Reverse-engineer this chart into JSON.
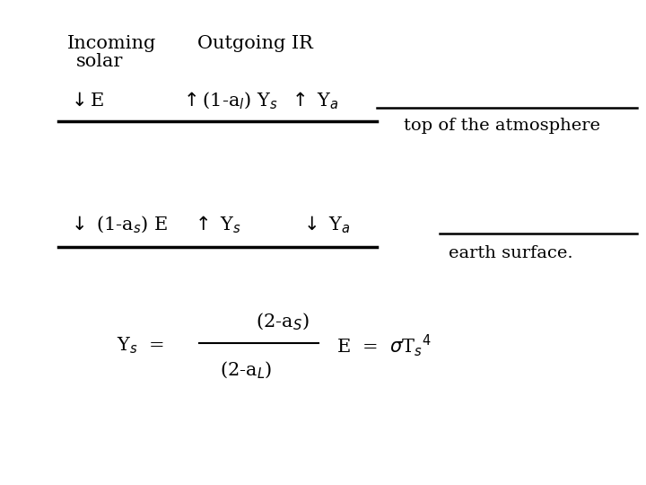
{
  "bg_color": "#ffffff",
  "font_size": 15,
  "font_size_sm": 14,
  "title1": "Incoming",
  "title2": "solar",
  "title3": "Outgoing IR",
  "row1_left": "$\\downarrow$E",
  "row1_mid": "$\\uparrow$(1-a$_{l}$) Y$_{s}$  $\\uparrow$ Y$_{a}$",
  "row1_label": "top of the atmosphere",
  "row2_left": "$\\downarrow$ (1-a$_{s}$) E    $\\uparrow$ Y$_{s}$          $\\downarrow$ Y$_{a}$",
  "row2_label": "earth surface.",
  "eq_num": "(2-a$_{S}$)",
  "eq_denom": "(2-a$_{L}$)",
  "eq_lhs": "Y$_{s}$  =",
  "eq_rhs": "E  =  $\\sigma$T$_{s}$$^{4}$",
  "lw_thick": 2.5,
  "lw_thin": 1.8
}
